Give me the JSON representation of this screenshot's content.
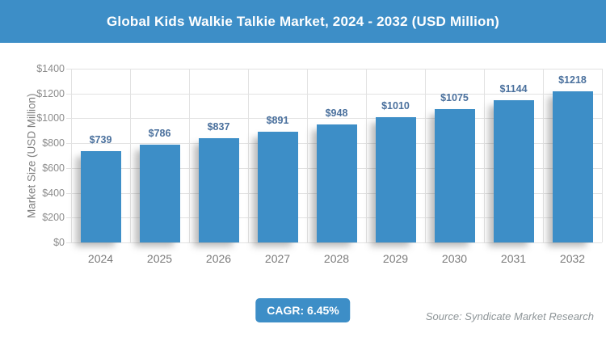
{
  "header": {
    "title": "Global Kids Walkie Talkie Market, 2024 - 2032 (USD Million)"
  },
  "chart_data": {
    "type": "bar",
    "title": "Global Kids Walkie Talkie Market, 2024 - 2032 (USD Million)",
    "categories": [
      "2024",
      "2025",
      "2026",
      "2027",
      "2028",
      "2029",
      "2030",
      "2031",
      "2032"
    ],
    "values": [
      739,
      786,
      837,
      891,
      948,
      1010,
      1075,
      1144,
      1218
    ],
    "value_labels": [
      "$739",
      "$786",
      "$837",
      "$891",
      "$948",
      "$1010",
      "$1075",
      "$1144",
      "$1218"
    ],
    "xlabel": "",
    "ylabel": "Market Size (USD Million)",
    "ylim": [
      0,
      1400
    ],
    "ytick_step": 200,
    "ytick_labels": [
      "$0",
      "$200",
      "$400",
      "$600",
      "$800",
      "$1000",
      "$1200",
      "$1400"
    ],
    "grid": true,
    "legend": "none",
    "bar_color": "#3D8EC7",
    "value_label_color": "#4A709D",
    "gridline_color": "#E2E2E2",
    "axis_text_color": "#8C8C8C"
  },
  "footer": {
    "cagr_label": "CAGR: 6.45%",
    "source": "Source: Syndicate Market Research"
  },
  "colors": {
    "accent": "#3D8EC7",
    "background": "#FFFFFF",
    "title_text": "#FFFFFF",
    "source_text": "#8E9598"
  }
}
